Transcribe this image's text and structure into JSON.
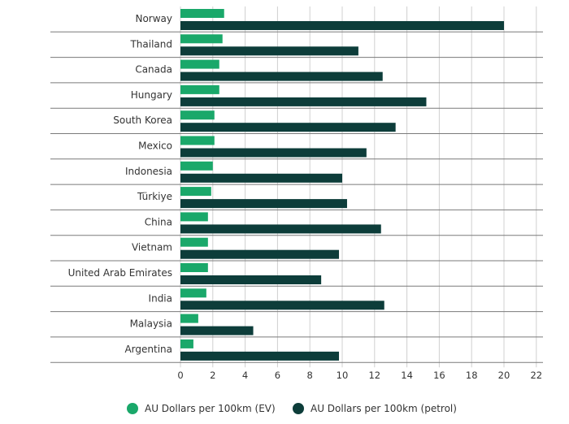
{
  "chart_data": {
    "type": "bar",
    "orientation": "horizontal",
    "categories": [
      "Norway",
      "Thailand",
      "Canada",
      "Hungary",
      "South Korea",
      "Mexico",
      "Indonesia",
      "Türkiye",
      "China",
      "Vietnam",
      "United Arab Emirates",
      "India",
      "Malaysia",
      "Argentina"
    ],
    "series": [
      {
        "name": "AU Dollars per 100km (EV)",
        "color": "#1aa86a",
        "values": [
          2.7,
          2.6,
          2.4,
          2.4,
          2.1,
          2.1,
          2.0,
          1.9,
          1.7,
          1.7,
          1.7,
          1.6,
          1.1,
          0.8
        ]
      },
      {
        "name": "AU Dollars per 100km (petrol)",
        "color": "#0d3d3a",
        "values": [
          20.0,
          11.0,
          12.5,
          15.2,
          13.3,
          11.5,
          10.0,
          10.3,
          12.4,
          9.8,
          8.7,
          12.6,
          4.5,
          9.8
        ]
      }
    ],
    "xlim": [
      0,
      22
    ],
    "xticks": [
      0,
      2,
      4,
      6,
      8,
      10,
      12,
      14,
      16,
      18,
      20,
      22
    ],
    "grid": true,
    "legend": "bottom",
    "title": "",
    "xlabel": "",
    "ylabel": ""
  }
}
